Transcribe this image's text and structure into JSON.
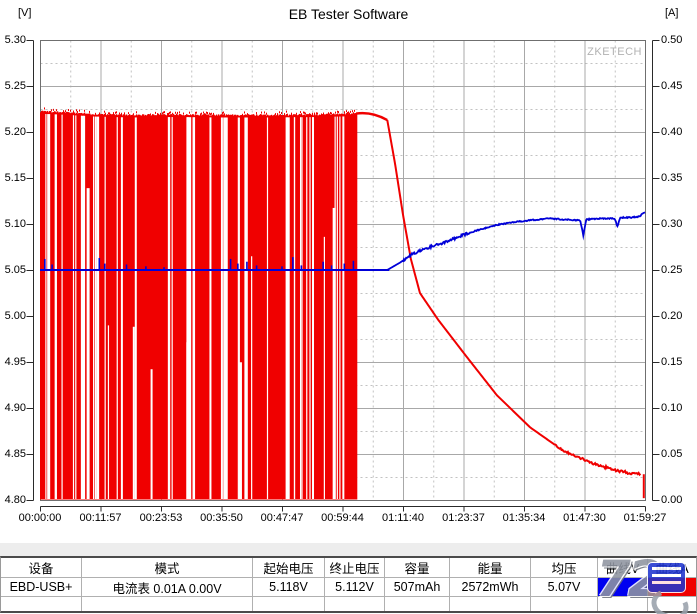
{
  "title": "EB Tester Software",
  "watermark": "ZKETECH",
  "logo_text": "72",
  "chart_data": {
    "type": "line",
    "title": "EB Tester Software",
    "left_axis": {
      "label": "[V]",
      "min": 4.8,
      "max": 5.3,
      "step": 0.05,
      "tick_labels": [
        "5.30",
        "5.25",
        "5.20",
        "5.15",
        "5.10",
        "5.05",
        "5.00",
        "4.95",
        "4.90",
        "4.85",
        "4.80"
      ]
    },
    "right_axis": {
      "label": "[A]",
      "min": 0.0,
      "max": 0.5,
      "step": 0.05,
      "tick_labels": [
        "0.50",
        "0.45",
        "0.40",
        "0.35",
        "0.30",
        "0.25",
        "0.20",
        "0.15",
        "0.10",
        "0.05",
        "0.00"
      ]
    },
    "x_axis": {
      "ticks": [
        "00:00:00",
        "00:11:57",
        "00:23:53",
        "00:35:50",
        "00:47:47",
        "00:59:44",
        "01:11:40",
        "01:23:37",
        "01:35:34",
        "01:47:30",
        "01:59:27"
      ]
    },
    "grid": {
      "major": "solid",
      "minor": "dashed"
    },
    "series": [
      {
        "name": "曲线A",
        "unit": "A",
        "axis": "right",
        "color": "#f00000",
        "description": "Load current: PWM switching between 0 A and ~0.42 A until ~01:02, constant ~0.42 A until ~01:08, then exponential decay to ~0.028 A with a drop to 0 A at the end",
        "pwm": {
          "from": 0.0,
          "to": 0.5225,
          "low": 0.0,
          "envelope": [
            [
              0,
              0.4225
            ],
            [
              0.04,
              0.4215
            ],
            [
              0.09,
              0.4195
            ],
            [
              0.15,
              0.4185
            ],
            [
              0.22,
              0.419
            ],
            [
              0.3,
              0.4185
            ],
            [
              0.38,
              0.4185
            ],
            [
              0.46,
              0.419
            ],
            [
              0.5225,
              0.42
            ]
          ]
        },
        "cc": {
          "from": 0.5225,
          "to": 0.574,
          "value": 0.42,
          "bump": 0.4225
        },
        "decay": [
          [
            0.574,
            0.413
          ],
          [
            0.587,
            0.365
          ],
          [
            0.6,
            0.31
          ],
          [
            0.613,
            0.262
          ],
          [
            0.628,
            0.225
          ],
          [
            0.658,
            0.196
          ],
          [
            0.706,
            0.155
          ],
          [
            0.755,
            0.114
          ],
          [
            0.81,
            0.079
          ],
          [
            0.864,
            0.054
          ],
          [
            0.921,
            0.038
          ],
          [
            0.97,
            0.0295
          ],
          [
            0.993,
            0.028
          ]
        ],
        "end_drop": {
          "at": 0.998,
          "to": 0.002
        }
      },
      {
        "name": "曲线V",
        "unit": "V",
        "axis": "left",
        "color": "#0000d8",
        "description": "Voltage: flat ~5.05 V under PWM load with small upward spikes, recovers to ~5.11 V after the load ends",
        "points": [
          [
            0,
            5.05
          ],
          [
            0.574,
            5.05
          ],
          [
            0.595,
            5.058
          ],
          [
            0.617,
            5.068
          ],
          [
            0.645,
            5.075
          ],
          [
            0.673,
            5.081
          ],
          [
            0.703,
            5.089
          ],
          [
            0.727,
            5.094
          ],
          [
            0.755,
            5.099
          ],
          [
            0.782,
            5.102
          ],
          [
            0.81,
            5.104
          ],
          [
            0.838,
            5.106
          ],
          [
            0.865,
            5.105
          ],
          [
            0.893,
            5.104
          ],
          [
            0.898,
            5.088
          ],
          [
            0.903,
            5.105
          ],
          [
            0.925,
            5.106
          ],
          [
            0.95,
            5.106
          ],
          [
            0.9545,
            5.097
          ],
          [
            0.959,
            5.107
          ],
          [
            0.975,
            5.107
          ],
          [
            0.99,
            5.108
          ],
          [
            1,
            5.113
          ]
        ],
        "flat_spikes": [
          [
            0.008,
            0.012
          ],
          [
            0.02,
            0.006
          ],
          [
            0.098,
            0.013
          ],
          [
            0.107,
            0.007
          ],
          [
            0.143,
            0.006
          ],
          [
            0.175,
            0.004
          ],
          [
            0.205,
            0.003
          ],
          [
            0.315,
            0.012
          ],
          [
            0.327,
            0.007
          ],
          [
            0.342,
            0.009
          ],
          [
            0.358,
            0.005
          ],
          [
            0.4,
            0.004
          ],
          [
            0.418,
            0.014
          ],
          [
            0.432,
            0.005
          ],
          [
            0.468,
            0.009
          ],
          [
            0.482,
            0.005
          ],
          [
            0.503,
            0.007
          ],
          [
            0.518,
            0.01
          ]
        ]
      }
    ]
  },
  "table": {
    "headers": [
      "设备",
      "模式",
      "起始电压",
      "终止电压",
      "容量",
      "能量",
      "均压",
      "曲线V",
      "曲线A"
    ],
    "row": {
      "device": "EBD-USB+",
      "mode": "电流表  0.01A  0.00V",
      "start_voltage": "5.118V",
      "end_voltage": "5.112V",
      "capacity": "507mAh",
      "energy": "2572mWh",
      "avg_voltage": "5.07V",
      "curve_v_color": "#0000f0",
      "curve_a_color": "#f00000"
    }
  }
}
